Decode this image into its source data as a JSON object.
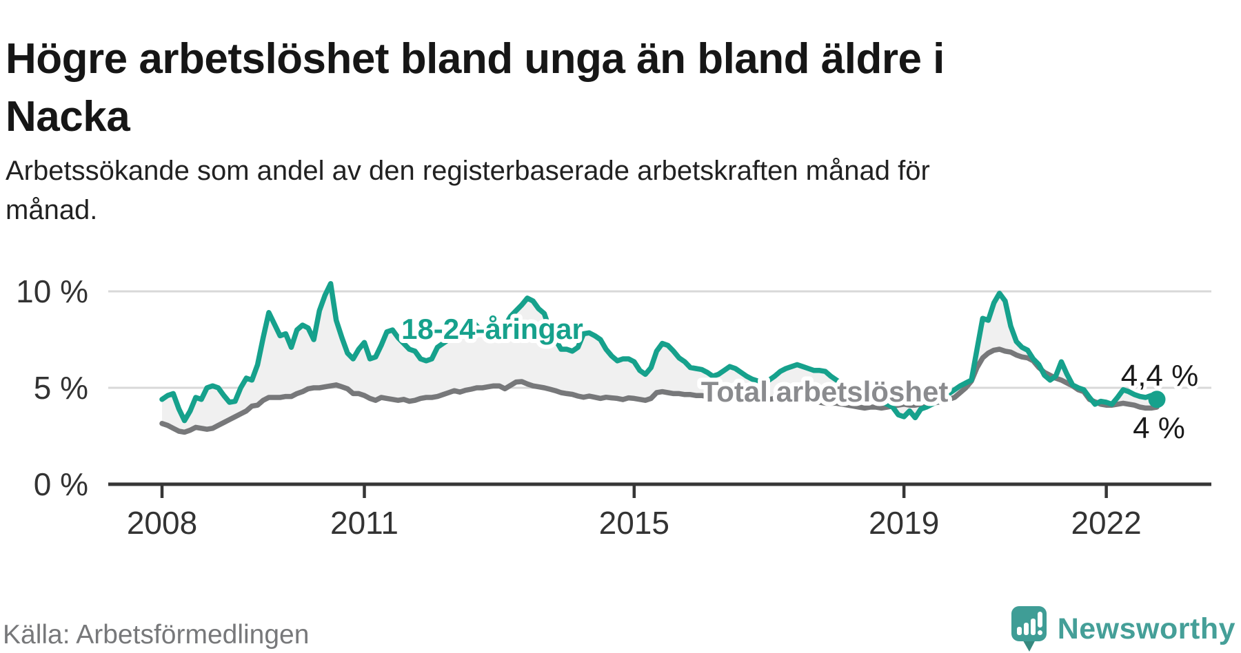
{
  "chart_data": {
    "type": "line",
    "title": "Högre arbetslöshet bland unga än bland äldre i Nacka",
    "title_lines": [
      "Högre arbetslöshet bland unga än bland äldre i",
      "Nacka"
    ],
    "subtitle_lines": [
      "Arbetssökande som andel av den registerbaserade arbetskraften månad för",
      "månad."
    ],
    "source": "Källa: Arbetsförmedlingen",
    "brand": "Newsworthy",
    "unit": "%",
    "x_start": "2008-01",
    "x_end": "2022-10",
    "grid": true,
    "ylim": [
      0,
      10.7
    ],
    "y_ticks": [
      {
        "label": "0 %",
        "value": 0
      },
      {
        "label": "5 %",
        "value": 5
      },
      {
        "label": "10 %",
        "value": 10
      }
    ],
    "x_ticks": [
      {
        "label": "2008",
        "month": 0
      },
      {
        "label": "2011",
        "month": 36
      },
      {
        "label": "2015",
        "month": 84
      },
      {
        "label": "2019",
        "month": 132
      },
      {
        "label": "2022",
        "month": 168
      }
    ],
    "fill_between_color": "#f0f0f0",
    "series": [
      {
        "name": "18-24-åringar",
        "color": "#16a18c",
        "label_color": "#16a18c",
        "end_label": "4,4 %",
        "end_value": 4.4,
        "end_dot": true,
        "values": [
          4.4,
          4.6,
          4.7,
          3.9,
          3.3,
          3.8,
          4.5,
          4.4,
          5.0,
          5.1,
          5.0,
          4.6,
          4.25,
          4.3,
          5.0,
          5.5,
          5.4,
          6.2,
          7.6,
          8.9,
          8.3,
          7.7,
          7.8,
          7.1,
          8.0,
          8.25,
          8.1,
          7.5,
          9.0,
          9.8,
          10.4,
          8.5,
          7.6,
          6.8,
          6.5,
          7.0,
          7.35,
          6.5,
          6.6,
          7.2,
          7.9,
          8.0,
          7.6,
          7.3,
          7.0,
          6.9,
          6.5,
          6.4,
          6.5,
          7.1,
          7.3,
          7.5,
          7.7,
          8.0,
          8.3,
          8.55,
          8.2,
          7.9,
          7.7,
          7.6,
          7.8,
          8.2,
          8.7,
          9.0,
          9.3,
          9.65,
          9.5,
          9.1,
          8.85,
          8.0,
          7.5,
          7.0,
          7.0,
          6.9,
          7.1,
          7.8,
          7.85,
          7.7,
          7.5,
          7.0,
          6.65,
          6.4,
          6.5,
          6.5,
          6.35,
          5.9,
          5.7,
          6.05,
          6.9,
          7.3,
          7.2,
          6.9,
          6.55,
          6.35,
          6.05,
          6.0,
          5.95,
          5.8,
          5.6,
          5.7,
          5.9,
          6.1,
          6.0,
          5.8,
          5.6,
          5.45,
          5.35,
          5.3,
          5.4,
          5.6,
          5.85,
          6.0,
          6.1,
          6.2,
          6.1,
          6.0,
          5.9,
          5.9,
          5.85,
          5.6,
          5.4,
          5.2,
          5.0,
          4.8,
          4.65,
          4.5,
          4.4,
          4.3,
          4.25,
          4.15,
          4.0,
          3.6,
          3.5,
          3.8,
          3.45,
          3.9,
          4.0,
          4.15,
          4.3,
          4.5,
          4.7,
          4.9,
          5.1,
          5.25,
          5.4,
          7.0,
          8.6,
          8.5,
          9.4,
          9.9,
          9.5,
          8.2,
          7.4,
          7.1,
          6.95,
          6.5,
          6.2,
          5.65,
          5.4,
          5.6,
          6.35,
          5.7,
          5.15,
          5.0,
          4.9,
          4.5,
          4.15,
          4.3,
          4.25,
          4.15,
          4.5,
          4.9,
          4.8,
          4.65,
          4.55,
          4.5,
          4.6,
          4.4
        ]
      },
      {
        "name": "Total arbetslöshet",
        "color": "#77787a",
        "label_color": "#8a8b8e",
        "end_label": "4 %",
        "end_value": 4.0,
        "end_dot": false,
        "values": [
          3.15,
          3.05,
          2.9,
          2.75,
          2.7,
          2.8,
          2.95,
          2.9,
          2.85,
          2.9,
          3.05,
          3.2,
          3.35,
          3.5,
          3.65,
          3.8,
          4.05,
          4.1,
          4.35,
          4.5,
          4.5,
          4.5,
          4.55,
          4.55,
          4.7,
          4.8,
          4.95,
          5.0,
          5.0,
          5.05,
          5.1,
          5.15,
          5.05,
          4.95,
          4.7,
          4.7,
          4.6,
          4.45,
          4.35,
          4.5,
          4.45,
          4.4,
          4.35,
          4.4,
          4.3,
          4.35,
          4.45,
          4.5,
          4.5,
          4.55,
          4.65,
          4.75,
          4.85,
          4.78,
          4.87,
          4.93,
          5.0,
          5.0,
          5.05,
          5.1,
          5.1,
          4.95,
          5.13,
          5.3,
          5.32,
          5.2,
          5.1,
          5.05,
          5.0,
          4.93,
          4.85,
          4.75,
          4.7,
          4.66,
          4.57,
          4.51,
          4.57,
          4.51,
          4.45,
          4.51,
          4.48,
          4.45,
          4.39,
          4.48,
          4.45,
          4.4,
          4.35,
          4.45,
          4.75,
          4.8,
          4.75,
          4.7,
          4.7,
          4.65,
          4.65,
          4.6,
          4.6,
          4.55,
          4.5,
          4.55,
          4.6,
          4.55,
          4.5,
          4.45,
          4.4,
          4.35,
          4.35,
          4.4,
          4.4,
          4.45,
          4.5,
          4.45,
          4.4,
          4.35,
          4.4,
          4.35,
          4.3,
          4.25,
          4.2,
          4.2,
          4.2,
          4.15,
          4.1,
          4.05,
          4.0,
          3.95,
          4.0,
          4.0,
          3.95,
          4.0,
          4.05,
          4.1,
          4.15,
          4.1,
          4.1,
          4.15,
          4.2,
          4.2,
          4.25,
          4.3,
          4.4,
          4.5,
          4.75,
          5.0,
          5.35,
          6.05,
          6.55,
          6.8,
          6.95,
          7.0,
          6.9,
          6.85,
          6.7,
          6.6,
          6.55,
          6.4,
          6.05,
          5.8,
          5.65,
          5.5,
          5.4,
          5.25,
          5.1,
          4.9,
          4.8,
          4.4,
          4.27,
          4.15,
          4.1,
          4.1,
          4.15,
          4.2,
          4.15,
          4.1,
          4.0,
          3.95,
          3.95,
          4.0
        ]
      }
    ],
    "colors": {
      "background": "#ffffff",
      "title": "#161616",
      "grid": "#d8d8d8",
      "axis": "#363636",
      "tick_label": "#333333",
      "value_label": "#1a1a1a",
      "source": "#77787a",
      "brand_text": "#459f98",
      "brand_icon": "#3f9d96",
      "brand_icon_tail": "#35897f"
    }
  }
}
